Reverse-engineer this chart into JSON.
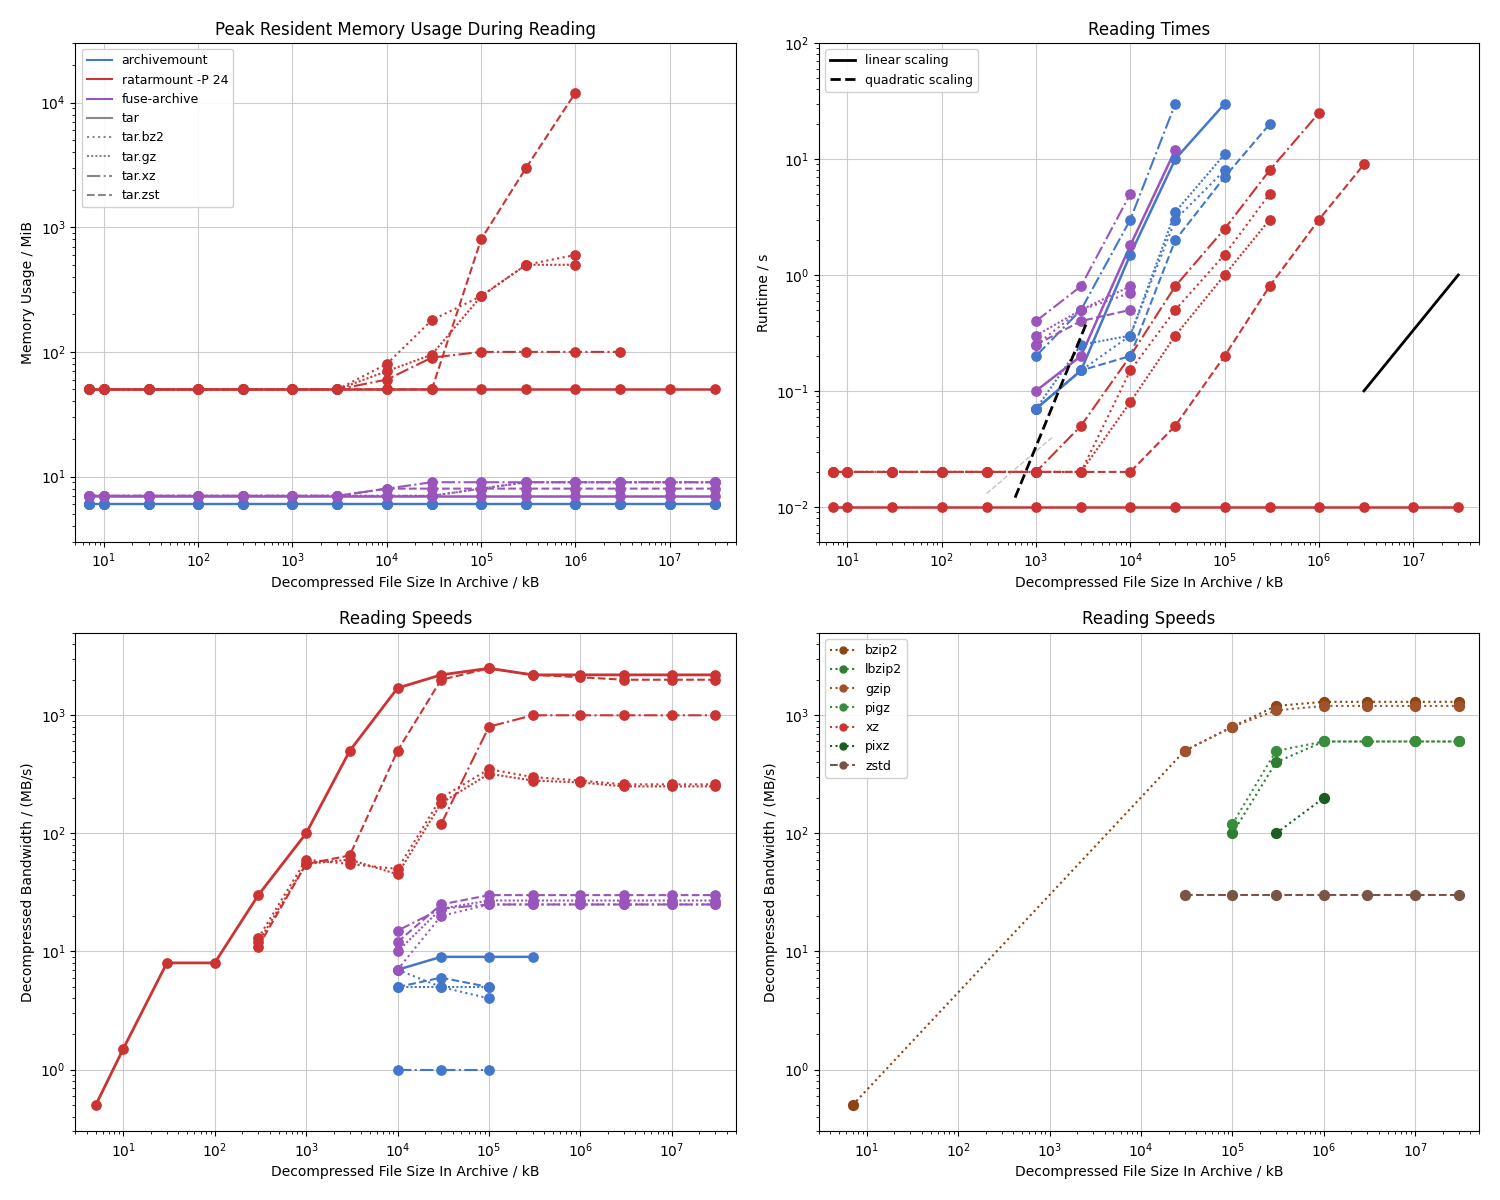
{
  "mem_xdata": [
    7,
    10,
    30,
    100,
    300,
    1000,
    3000,
    10000,
    30000,
    100000,
    300000,
    1000000,
    3000000,
    10000000,
    30000000
  ],
  "mem_archivemount_tar": [
    6,
    6,
    6,
    6,
    6,
    6,
    6,
    6,
    6,
    6,
    6,
    6,
    6,
    6,
    6
  ],
  "mem_ratarmount_tar": [
    50,
    50,
    50,
    50,
    50,
    50,
    50,
    50,
    50,
    50,
    50,
    50,
    50,
    50,
    50
  ],
  "mem_fuse_tar": [
    7,
    7,
    7,
    7,
    7,
    7,
    7,
    7,
    7,
    7,
    7,
    7,
    7,
    7,
    7
  ],
  "mem_archivemount_bz2": [
    6,
    6,
    6,
    6,
    6,
    6,
    6,
    6,
    6,
    6,
    6,
    6,
    6,
    6,
    6
  ],
  "mem_ratarmount_bz2": [
    50,
    50,
    50,
    50,
    50,
    50,
    50,
    80,
    180,
    280,
    500,
    600,
    null,
    null,
    null
  ],
  "mem_fuse_bz2": [
    7,
    7,
    7,
    7,
    7,
    7,
    7,
    7,
    7,
    8,
    9,
    9,
    9,
    9,
    9
  ],
  "mem_archivemount_gz": [
    6,
    6,
    6,
    6,
    6,
    6,
    6,
    6,
    6,
    6,
    6,
    6,
    6,
    6,
    6
  ],
  "mem_ratarmount_gz": [
    50,
    50,
    50,
    50,
    50,
    50,
    50,
    70,
    95,
    280,
    500,
    500,
    null,
    null,
    null
  ],
  "mem_fuse_gz": [
    7,
    7,
    7,
    7,
    7,
    7,
    7,
    7,
    7,
    8,
    9,
    9,
    9,
    9,
    9
  ],
  "mem_archivemount_xz": [
    6,
    6,
    6,
    6,
    6,
    6,
    6,
    6,
    6,
    6,
    6,
    6,
    6,
    6,
    6
  ],
  "mem_ratarmount_xz": [
    50,
    50,
    50,
    50,
    50,
    50,
    50,
    60,
    90,
    100,
    100,
    100,
    100,
    null,
    null
  ],
  "mem_fuse_xz": [
    7,
    7,
    7,
    7,
    7,
    7,
    7,
    8,
    9,
    9,
    9,
    9,
    9,
    9,
    9
  ],
  "mem_archivemount_zst": [
    6,
    6,
    6,
    6,
    6,
    6,
    6,
    6,
    6,
    6,
    6,
    6,
    6,
    6,
    6
  ],
  "mem_ratarmount_zst": [
    50,
    50,
    50,
    50,
    50,
    50,
    50,
    50,
    50,
    800,
    3000,
    12000,
    null,
    null,
    null
  ],
  "mem_fuse_zst": [
    7,
    7,
    7,
    7,
    7,
    7,
    7,
    8,
    8,
    8,
    8,
    8,
    8,
    8,
    8
  ],
  "time_xdata": [
    7,
    10,
    30,
    100,
    300,
    1000,
    3000,
    10000,
    30000,
    100000,
    300000,
    1000000,
    3000000,
    10000000,
    30000000
  ],
  "time_ratarmount_tar": [
    0.01,
    0.01,
    0.01,
    0.01,
    0.01,
    0.01,
    0.01,
    0.01,
    0.01,
    0.01,
    0.01,
    0.01,
    0.01,
    0.01,
    0.01
  ],
  "time_archivemount_tar": [
    null,
    null,
    null,
    null,
    null,
    0.07,
    0.15,
    1.5,
    10,
    30,
    null,
    null,
    null,
    null,
    null
  ],
  "time_fuse_tar": [
    null,
    null,
    null,
    null,
    null,
    0.1,
    0.2,
    1.8,
    12,
    null,
    null,
    null,
    null,
    null,
    null
  ],
  "time_ratarmount_bz2": [
    0.02,
    0.02,
    0.02,
    0.02,
    0.02,
    0.02,
    0.02,
    0.15,
    0.5,
    1.5,
    5,
    null,
    null,
    null,
    null
  ],
  "time_archivemount_bz2": [
    null,
    null,
    null,
    null,
    null,
    0.07,
    0.15,
    0.3,
    3,
    8,
    null,
    null,
    null,
    null,
    null
  ],
  "time_fuse_bz2": [
    null,
    null,
    null,
    null,
    null,
    0.25,
    0.5,
    0.7,
    null,
    null,
    null,
    null,
    null,
    null,
    null
  ],
  "time_ratarmount_gz": [
    0.02,
    0.02,
    0.02,
    0.02,
    0.02,
    0.02,
    0.02,
    0.08,
    0.3,
    1.0,
    3,
    null,
    null,
    null,
    null
  ],
  "time_archivemount_gz": [
    null,
    null,
    null,
    null,
    null,
    0.07,
    0.25,
    0.3,
    3.5,
    11,
    null,
    null,
    null,
    null,
    null
  ],
  "time_fuse_gz": [
    null,
    null,
    null,
    null,
    null,
    0.3,
    0.5,
    0.8,
    null,
    null,
    null,
    null,
    null,
    null,
    null
  ],
  "time_ratarmount_xz": [
    0.02,
    0.02,
    0.02,
    0.02,
    0.02,
    0.02,
    0.05,
    0.2,
    0.8,
    2.5,
    8,
    25,
    null,
    null,
    null
  ],
  "time_archivemount_xz": [
    null,
    null,
    null,
    null,
    null,
    0.2,
    0.5,
    3,
    30,
    null,
    null,
    null,
    null,
    null,
    null
  ],
  "time_fuse_xz": [
    null,
    null,
    null,
    null,
    null,
    0.4,
    0.8,
    5,
    null,
    null,
    null,
    null,
    null,
    null,
    null
  ],
  "time_ratarmount_zst": [
    0.02,
    0.02,
    0.02,
    0.02,
    0.02,
    0.02,
    0.02,
    0.02,
    0.05,
    0.2,
    0.8,
    3,
    9,
    null,
    null
  ],
  "time_archivemount_zst": [
    null,
    null,
    null,
    null,
    null,
    0.07,
    0.15,
    0.2,
    2,
    7,
    20,
    null,
    null,
    null,
    null
  ],
  "time_fuse_zst": [
    null,
    null,
    null,
    null,
    null,
    0.25,
    0.4,
    0.5,
    null,
    null,
    null,
    null,
    null,
    null,
    null
  ],
  "speed_bl_xdata": [
    5,
    10,
    30,
    100,
    300,
    1000,
    3000,
    10000,
    30000,
    100000,
    300000,
    1000000,
    3000000,
    10000000,
    30000000
  ],
  "speed_ratarmount_tar": [
    0.5,
    1.5,
    8,
    8,
    30,
    100,
    500,
    1700,
    2200,
    2500,
    2200,
    2200,
    2200,
    2200,
    2200
  ],
  "speed_archivemount_tar": [
    null,
    null,
    null,
    null,
    null,
    null,
    null,
    7,
    9,
    9,
    9,
    null,
    null,
    null,
    null
  ],
  "speed_ratarmount_bz2": [
    null,
    null,
    null,
    null,
    13,
    60,
    55,
    50,
    200,
    350,
    300,
    280,
    260,
    260,
    260
  ],
  "speed_archivemount_bz2": [
    null,
    null,
    null,
    null,
    null,
    null,
    null,
    7,
    5,
    4,
    null,
    null,
    null,
    null,
    null
  ],
  "speed_fuse_bz2": [
    null,
    null,
    null,
    null,
    null,
    null,
    null,
    7,
    20,
    25,
    25,
    25,
    25,
    25,
    25
  ],
  "speed_ratarmount_gz": [
    null,
    null,
    null,
    null,
    12,
    55,
    60,
    45,
    180,
    320,
    280,
    270,
    250,
    250,
    250
  ],
  "speed_archivemount_gz": [
    null,
    null,
    null,
    null,
    null,
    null,
    null,
    5,
    5,
    5,
    null,
    null,
    null,
    null,
    null
  ],
  "speed_fuse_gz": [
    null,
    null,
    null,
    null,
    null,
    null,
    null,
    10,
    23,
    27,
    27,
    27,
    27,
    27,
    27
  ],
  "speed_ratarmount_xz": [
    null,
    null,
    null,
    null,
    null,
    null,
    null,
    null,
    120,
    800,
    1000,
    1000,
    1000,
    1000,
    1000
  ],
  "speed_archivemount_xz": [
    null,
    null,
    null,
    null,
    null,
    null,
    null,
    1.0,
    1.0,
    1.0,
    null,
    null,
    null,
    null,
    null
  ],
  "speed_fuse_xz": [
    null,
    null,
    null,
    null,
    null,
    null,
    null,
    15,
    23,
    25,
    25,
    25,
    25,
    25,
    25
  ],
  "speed_ratarmount_zst": [
    null,
    null,
    null,
    null,
    11,
    55,
    65,
    500,
    2000,
    2500,
    2200,
    2100,
    2000,
    2000,
    2000
  ],
  "speed_archivemount_zst": [
    null,
    null,
    null,
    null,
    null,
    null,
    null,
    5,
    6,
    5,
    null,
    null,
    null,
    null,
    null
  ],
  "speed_fuse_zst": [
    null,
    null,
    null,
    null,
    null,
    null,
    null,
    12,
    25,
    30,
    30,
    30,
    30,
    30,
    30
  ],
  "speed_br_xdata": [
    7,
    10,
    30,
    100,
    300,
    1000,
    3000,
    10000,
    30000,
    100000,
    300000,
    1000000,
    3000000,
    10000000,
    30000000
  ],
  "speed_bzip2": [
    0.5,
    null,
    null,
    null,
    null,
    null,
    null,
    null,
    500,
    800,
    1200,
    1300,
    1300,
    1300,
    1300
  ],
  "speed_lbzip2": [
    null,
    null,
    null,
    null,
    null,
    null,
    null,
    null,
    null,
    100,
    400,
    600,
    600,
    600,
    600
  ],
  "speed_gzip": [
    null,
    null,
    null,
    null,
    null,
    null,
    null,
    null,
    500,
    800,
    1100,
    1200,
    1200,
    1200,
    1200
  ],
  "speed_pigz": [
    null,
    null,
    null,
    null,
    null,
    null,
    null,
    null,
    null,
    120,
    500,
    600,
    600,
    600,
    600
  ],
  "speed_xz": [
    null,
    null,
    null,
    null,
    null,
    null,
    null,
    null,
    null,
    null,
    null,
    null,
    null,
    null,
    null
  ],
  "speed_pixz": [
    null,
    null,
    null,
    null,
    null,
    null,
    null,
    null,
    null,
    null,
    100,
    200,
    null,
    null,
    null
  ],
  "speed_zstd": [
    null,
    null,
    null,
    null,
    null,
    null,
    null,
    null,
    30,
    30,
    30,
    30,
    30,
    30,
    30
  ]
}
